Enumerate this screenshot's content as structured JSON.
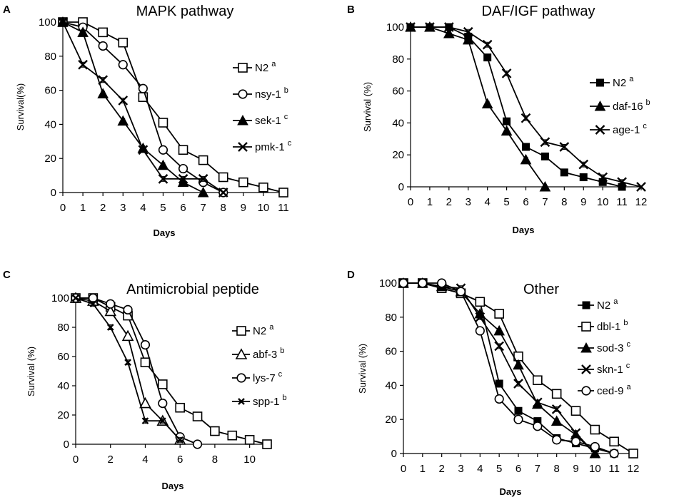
{
  "colors": {
    "line": "#000000",
    "background": "#ffffff"
  },
  "chart_data": [
    {
      "id": "A",
      "type": "line",
      "panel_letter": "A",
      "title": "MAPK pathway",
      "xlabel": "Days",
      "ylabel": "Survival(%)",
      "xlim": [
        0,
        11
      ],
      "ylim": [
        0,
        100
      ],
      "xticks": [
        "0",
        "1",
        "2",
        "3",
        "4",
        "5",
        "6",
        "7",
        "8",
        "9",
        "10",
        "11"
      ],
      "yticks": [
        "0",
        "20",
        "40",
        "60",
        "80",
        "100"
      ],
      "series": [
        {
          "name": "N2",
          "sup": "a",
          "marker": "open-square",
          "x": [
            0,
            1,
            2,
            3,
            4,
            5,
            6,
            7,
            8,
            9,
            10,
            11
          ],
          "y": [
            100,
            100,
            94,
            88,
            56,
            41,
            25,
            19,
            9,
            6,
            3,
            0
          ]
        },
        {
          "name": "nsy-1",
          "sup": "b",
          "marker": "open-circle",
          "x": [
            0,
            1,
            2,
            3,
            4,
            5,
            6,
            7,
            8
          ],
          "y": [
            100,
            97,
            86,
            75,
            61,
            25,
            14,
            6,
            0
          ]
        },
        {
          "name": "sek-1",
          "sup": "c",
          "marker": "filled-triangle",
          "x": [
            0,
            1,
            2,
            3,
            4,
            5,
            6,
            7
          ],
          "y": [
            100,
            94,
            58,
            42,
            26,
            16,
            6,
            0
          ]
        },
        {
          "name": "pmk-1",
          "sup": "c",
          "marker": "cross",
          "x": [
            0,
            1,
            2,
            3,
            4,
            5,
            6,
            7,
            8
          ],
          "y": [
            100,
            75,
            66,
            54,
            25,
            8,
            8,
            8,
            0
          ]
        }
      ]
    },
    {
      "id": "B",
      "type": "line",
      "panel_letter": "B",
      "title": "DAF/IGF pathway",
      "xlabel": "Days",
      "ylabel": "Survival (%)",
      "xlim": [
        0,
        12
      ],
      "ylim": [
        0,
        100
      ],
      "xticks": [
        "0",
        "1",
        "2",
        "3",
        "4",
        "5",
        "6",
        "7",
        "8",
        "9",
        "10",
        "11",
        "12"
      ],
      "yticks": [
        "0",
        "20",
        "40",
        "60",
        "80",
        "100"
      ],
      "series": [
        {
          "name": "N2",
          "sup": "a",
          "marker": "filled-square",
          "x": [
            0,
            1,
            2,
            3,
            4,
            5,
            6,
            7,
            8,
            9,
            10,
            11
          ],
          "y": [
            100,
            100,
            100,
            94,
            81,
            41,
            25,
            19,
            9,
            6,
            3,
            0
          ]
        },
        {
          "name": "daf-16",
          "sup": "b",
          "marker": "filled-triangle",
          "x": [
            0,
            1,
            2,
            3,
            4,
            5,
            6,
            7
          ],
          "y": [
            100,
            100,
            96,
            92,
            52,
            35,
            17,
            0
          ]
        },
        {
          "name": "age-1",
          "sup": "c",
          "marker": "cross",
          "x": [
            0,
            1,
            2,
            3,
            4,
            5,
            6,
            7,
            8,
            9,
            10,
            11,
            12
          ],
          "y": [
            100,
            100,
            100,
            97,
            89,
            71,
            43,
            28,
            25,
            14,
            6,
            3,
            0
          ]
        }
      ]
    },
    {
      "id": "C",
      "type": "line",
      "panel_letter": "C",
      "title": "Antimicrobial peptide",
      "xlabel": "Days",
      "ylabel": "Survival (%)",
      "xlim": [
        0,
        11
      ],
      "ylim": [
        0,
        100
      ],
      "xticks": [
        "0",
        "2",
        "4",
        "6",
        "8",
        "10"
      ],
      "xtick_values": [
        0,
        2,
        4,
        6,
        8,
        10
      ],
      "yticks": [
        "0",
        "20",
        "40",
        "60",
        "80",
        "100"
      ],
      "series": [
        {
          "name": "N2",
          "sup": "a",
          "marker": "open-square",
          "x": [
            0,
            1,
            2,
            3,
            4,
            5,
            6,
            7,
            8,
            9,
            10,
            11
          ],
          "y": [
            100,
            100,
            94,
            88,
            56,
            41,
            25,
            19,
            9,
            6,
            3,
            0
          ]
        },
        {
          "name": "abf-3",
          "sup": "b",
          "marker": "open-triangle",
          "x": [
            0,
            1,
            2,
            3,
            4,
            5,
            6
          ],
          "y": [
            100,
            98,
            91,
            74,
            28,
            16,
            3
          ]
        },
        {
          "name": "lys-7",
          "sup": "c",
          "marker": "open-circle",
          "x": [
            0,
            1,
            2,
            3,
            4,
            5,
            6,
            7
          ],
          "y": [
            100,
            100,
            96,
            92,
            68,
            28,
            5,
            0
          ]
        },
        {
          "name": "spp-1",
          "sup": "b",
          "marker": "small-cross",
          "x": [
            0,
            1,
            2,
            3,
            4,
            5,
            6
          ],
          "y": [
            100,
            96,
            80,
            56,
            16,
            16,
            3
          ]
        }
      ]
    },
    {
      "id": "D",
      "type": "line",
      "panel_letter": "D",
      "title": "Other",
      "xlabel": "Days",
      "ylabel": "Survival (%)",
      "xlim": [
        0,
        12
      ],
      "ylim": [
        0,
        100
      ],
      "xticks": [
        "0",
        "1",
        "2",
        "3",
        "4",
        "5",
        "6",
        "7",
        "8",
        "9",
        "10",
        "11",
        "12"
      ],
      "yticks": [
        "0",
        "20",
        "40",
        "60",
        "80",
        "100"
      ],
      "series": [
        {
          "name": "N2",
          "sup": "a",
          "marker": "filled-square",
          "x": [
            0,
            1,
            2,
            3,
            4,
            5,
            6,
            7,
            8,
            9,
            10,
            11
          ],
          "y": [
            100,
            100,
            97,
            94,
            89,
            41,
            25,
            19,
            9,
            6,
            3,
            0
          ]
        },
        {
          "name": "dbl-1",
          "sup": "b",
          "marker": "open-square",
          "x": [
            0,
            1,
            2,
            3,
            4,
            5,
            6,
            7,
            8,
            9,
            10,
            11,
            12
          ],
          "y": [
            100,
            100,
            97,
            94,
            89,
            82,
            57,
            43,
            35,
            25,
            14,
            7,
            0
          ]
        },
        {
          "name": "sod-3",
          "sup": "c",
          "marker": "filled-triangle",
          "x": [
            0,
            1,
            2,
            3,
            4,
            5,
            6,
            7,
            8,
            9,
            10
          ],
          "y": [
            100,
            100,
            98,
            95,
            82,
            72,
            52,
            29,
            19,
            11,
            0
          ]
        },
        {
          "name": "skn-1",
          "sup": "c",
          "marker": "cross",
          "x": [
            0,
            1,
            2,
            3,
            4,
            5,
            6,
            7,
            8,
            9,
            10
          ],
          "y": [
            100,
            100,
            98,
            97,
            80,
            63,
            41,
            30,
            26,
            12,
            0
          ]
        },
        {
          "name": "ced-9",
          "sup": "a",
          "marker": "open-circle",
          "x": [
            0,
            1,
            2,
            3,
            4,
            5,
            6,
            7,
            8,
            9,
            10,
            11
          ],
          "y": [
            100,
            100,
            100,
            95,
            72,
            32,
            20,
            16,
            8,
            7,
            4,
            0
          ]
        }
      ]
    }
  ]
}
